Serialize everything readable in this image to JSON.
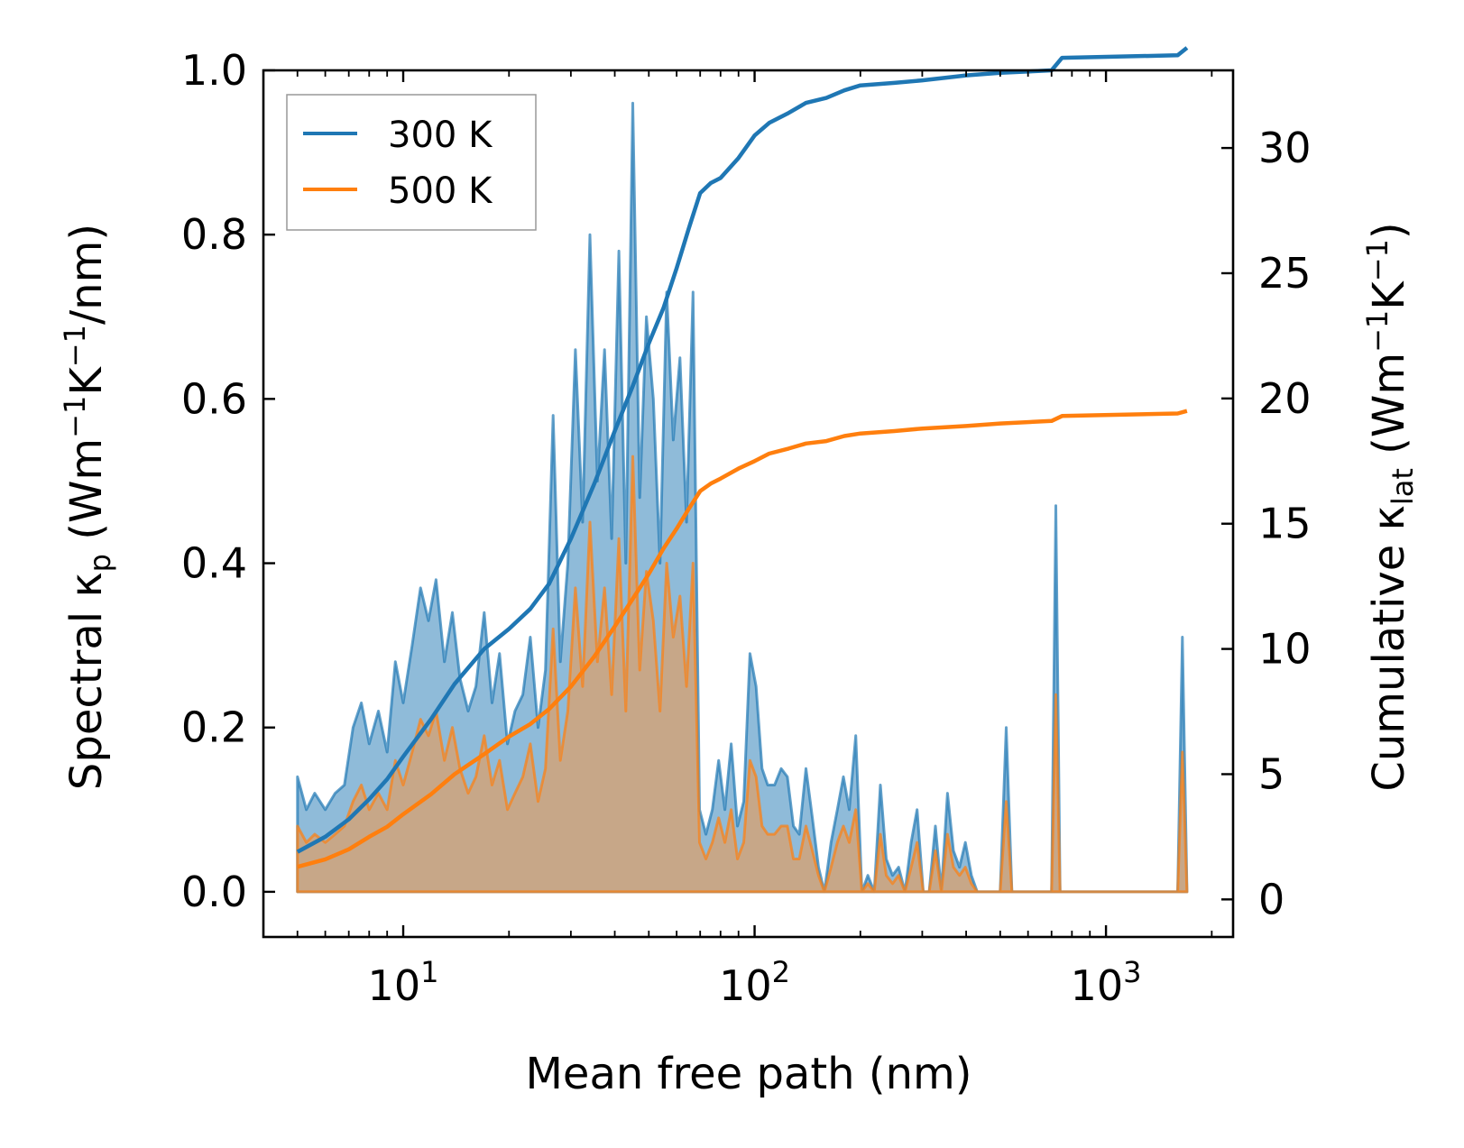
{
  "chart_data": {
    "type": "line",
    "title": "",
    "xlabel": "Mean free path (nm)",
    "ylabel_left": {
      "pre": "Spectral κ",
      "sub": "p",
      "post": " (Wm",
      "sup1": "−1",
      "mid": "K",
      "sup2": "−1",
      "end": "/nm)"
    },
    "ylabel_right": {
      "pre": "Cumulative κ",
      "sub": "lat",
      "post": " (Wm",
      "sup1": "−1",
      "mid": "K",
      "sup2": "−1",
      "end": ")"
    },
    "xscale": "log",
    "xlim": [
      4,
      2300
    ],
    "ylim_left": [
      -0.055,
      1.0
    ],
    "ylim_right": [
      -1.5,
      33.1
    ],
    "x_ticks": [
      {
        "value": 10,
        "base": "10",
        "exp": "1"
      },
      {
        "value": 100,
        "base": "10",
        "exp": "2"
      },
      {
        "value": 1000,
        "base": "10",
        "exp": "3"
      }
    ],
    "y_ticks_left": [
      "0.0",
      "0.2",
      "0.4",
      "0.6",
      "0.8",
      "1.0"
    ],
    "y_ticks_right": [
      "0",
      "5",
      "10",
      "15",
      "20",
      "25",
      "30"
    ],
    "legend": {
      "position": "top-left",
      "entries": [
        "300 K",
        "500 K"
      ]
    },
    "colors": {
      "300 K": "#1f77b4",
      "500 K": "#ff7f0e",
      "fill_300": "#1f77b4",
      "fill_500": "#d4a373"
    },
    "spectral": [
      {
        "name": "300 K",
        "x": [
          5.0,
          5.3,
          5.6,
          6.0,
          6.4,
          6.8,
          7.2,
          7.6,
          8.0,
          8.5,
          9.0,
          9.5,
          10.0,
          10.6,
          11.2,
          11.8,
          12.4,
          13.1,
          13.8,
          14.5,
          15.3,
          16.1,
          17.0,
          17.9,
          18.8,
          19.8,
          20.8,
          21.9,
          23.0,
          24.2,
          25.4,
          26.7,
          28.0,
          29.4,
          30.9,
          32.4,
          34.0,
          35.7,
          37.4,
          39.2,
          41.1,
          43.0,
          45.0,
          47.1,
          49.2,
          51.5,
          53.8,
          56.2,
          58.7,
          61.3,
          64.0,
          66.8,
          69.7,
          72.7,
          75.8,
          79.0,
          82.3,
          85.8,
          89.4,
          93.1,
          97.0,
          101,
          105,
          109,
          114,
          119,
          124,
          129,
          134,
          140,
          146,
          152,
          158,
          165,
          172,
          179,
          186,
          194,
          202,
          210,
          219,
          228,
          237,
          247,
          257,
          268,
          279,
          290,
          302,
          314,
          327,
          340,
          354,
          368,
          383,
          398,
          414,
          430,
          500,
          520,
          540,
          560,
          700,
          720,
          740,
          760,
          800,
          1600,
          1650,
          1700
        ],
        "y": [
          0.14,
          0.1,
          0.12,
          0.1,
          0.12,
          0.13,
          0.2,
          0.23,
          0.18,
          0.22,
          0.17,
          0.28,
          0.23,
          0.3,
          0.37,
          0.33,
          0.38,
          0.28,
          0.34,
          0.26,
          0.22,
          0.25,
          0.34,
          0.23,
          0.29,
          0.18,
          0.22,
          0.24,
          0.31,
          0.2,
          0.27,
          0.58,
          0.28,
          0.4,
          0.66,
          0.45,
          0.8,
          0.5,
          0.66,
          0.43,
          0.78,
          0.4,
          0.96,
          0.48,
          0.7,
          0.6,
          0.4,
          0.73,
          0.55,
          0.65,
          0.45,
          0.73,
          0.1,
          0.07,
          0.1,
          0.16,
          0.1,
          0.18,
          0.08,
          0.11,
          0.29,
          0.25,
          0.15,
          0.13,
          0.13,
          0.15,
          0.14,
          0.08,
          0.07,
          0.15,
          0.09,
          0.03,
          0.0,
          0.06,
          0.1,
          0.14,
          0.1,
          0.19,
          0.0,
          0.02,
          0.0,
          0.13,
          0.04,
          0.02,
          0.03,
          0.0,
          0.06,
          0.1,
          0.0,
          0.0,
          0.08,
          0.0,
          0.12,
          0.05,
          0.03,
          0.06,
          0.02,
          0.0,
          0.0,
          0.2,
          0.0,
          0.0,
          0.0,
          0.47,
          0.0,
          0.0,
          0.0,
          0.0,
          0.31,
          0.0
        ]
      },
      {
        "name": "500 K",
        "x": [
          5.0,
          5.3,
          5.6,
          6.0,
          6.4,
          6.8,
          7.2,
          7.6,
          8.0,
          8.5,
          9.0,
          9.5,
          10.0,
          10.6,
          11.2,
          11.8,
          12.4,
          13.1,
          13.8,
          14.5,
          15.3,
          16.1,
          17.0,
          17.9,
          18.8,
          19.8,
          20.8,
          21.9,
          23.0,
          24.2,
          25.4,
          26.7,
          28.0,
          29.4,
          30.9,
          32.4,
          34.0,
          35.7,
          37.4,
          39.2,
          41.1,
          43.0,
          45.0,
          47.1,
          49.2,
          51.5,
          53.8,
          56.2,
          58.7,
          61.3,
          64.0,
          66.8,
          69.7,
          72.7,
          75.8,
          79.0,
          82.3,
          85.8,
          89.4,
          93.1,
          97.0,
          101,
          105,
          109,
          114,
          119,
          124,
          129,
          134,
          140,
          146,
          152,
          158,
          165,
          172,
          179,
          186,
          194,
          202,
          210,
          219,
          228,
          237,
          247,
          257,
          268,
          279,
          290,
          302,
          314,
          327,
          340,
          354,
          368,
          383,
          398,
          414,
          430,
          500,
          520,
          540,
          560,
          700,
          720,
          740,
          760,
          800,
          1600,
          1650,
          1700
        ],
        "y": [
          0.08,
          0.06,
          0.07,
          0.06,
          0.07,
          0.08,
          0.11,
          0.13,
          0.1,
          0.12,
          0.1,
          0.16,
          0.13,
          0.17,
          0.21,
          0.19,
          0.22,
          0.16,
          0.2,
          0.15,
          0.12,
          0.14,
          0.19,
          0.13,
          0.16,
          0.1,
          0.12,
          0.14,
          0.18,
          0.11,
          0.15,
          0.32,
          0.16,
          0.22,
          0.37,
          0.25,
          0.45,
          0.28,
          0.37,
          0.24,
          0.43,
          0.22,
          0.53,
          0.27,
          0.39,
          0.33,
          0.22,
          0.4,
          0.31,
          0.36,
          0.25,
          0.4,
          0.06,
          0.04,
          0.06,
          0.09,
          0.06,
          0.1,
          0.04,
          0.06,
          0.16,
          0.14,
          0.08,
          0.07,
          0.07,
          0.08,
          0.08,
          0.04,
          0.04,
          0.08,
          0.05,
          0.02,
          0.0,
          0.03,
          0.06,
          0.08,
          0.06,
          0.1,
          0.0,
          0.01,
          0.0,
          0.07,
          0.02,
          0.01,
          0.02,
          0.0,
          0.03,
          0.06,
          0.0,
          0.0,
          0.05,
          0.0,
          0.07,
          0.03,
          0.02,
          0.03,
          0.01,
          0.0,
          0.0,
          0.11,
          0.0,
          0.0,
          0.0,
          0.24,
          0.0,
          0.0,
          0.0,
          0.0,
          0.17,
          0.0
        ]
      }
    ],
    "cumulative": [
      {
        "name": "300 K",
        "x": [
          5.0,
          6.0,
          7.0,
          8.0,
          9.0,
          10.0,
          12.0,
          14.0,
          17.0,
          20.0,
          23.0,
          26.0,
          30.0,
          35.0,
          40.0,
          45.0,
          50.0,
          55.0,
          60.0,
          65.0,
          70.0,
          75.0,
          80.0,
          90.0,
          100.0,
          110.0,
          125.0,
          140.0,
          160.0,
          180.0,
          200.0,
          250.0,
          300.0,
          400.0,
          500.0,
          700.0,
          750.0,
          1600.0,
          1700.0
        ],
        "y": [
          1.9,
          2.5,
          3.2,
          4.0,
          4.8,
          5.7,
          7.2,
          8.6,
          10.0,
          10.8,
          11.6,
          12.6,
          14.4,
          16.6,
          18.7,
          20.5,
          22.2,
          23.6,
          25.2,
          26.8,
          28.2,
          28.6,
          28.8,
          29.6,
          30.5,
          31.0,
          31.4,
          31.8,
          32.0,
          32.3,
          32.5,
          32.6,
          32.7,
          32.9,
          33.0,
          33.1,
          33.6,
          33.7,
          34.0
        ]
      },
      {
        "name": "500 K",
        "x": [
          5.0,
          6.0,
          7.0,
          8.0,
          9.0,
          10.0,
          12.0,
          14.0,
          17.0,
          20.0,
          23.0,
          26.0,
          30.0,
          35.0,
          40.0,
          45.0,
          50.0,
          55.0,
          60.0,
          65.0,
          70.0,
          75.0,
          80.0,
          90.0,
          100.0,
          110.0,
          125.0,
          140.0,
          160.0,
          180.0,
          200.0,
          250.0,
          300.0,
          400.0,
          500.0,
          700.0,
          750.0,
          1600.0,
          1700.0
        ],
        "y": [
          1.3,
          1.6,
          2.0,
          2.5,
          2.9,
          3.4,
          4.2,
          5.0,
          5.8,
          6.5,
          7.0,
          7.6,
          8.5,
          9.7,
          10.9,
          12.0,
          13.0,
          14.0,
          14.8,
          15.6,
          16.3,
          16.6,
          16.8,
          17.2,
          17.5,
          17.8,
          18.0,
          18.2,
          18.3,
          18.5,
          18.6,
          18.7,
          18.8,
          18.9,
          19.0,
          19.1,
          19.3,
          19.4,
          19.5
        ]
      }
    ]
  }
}
